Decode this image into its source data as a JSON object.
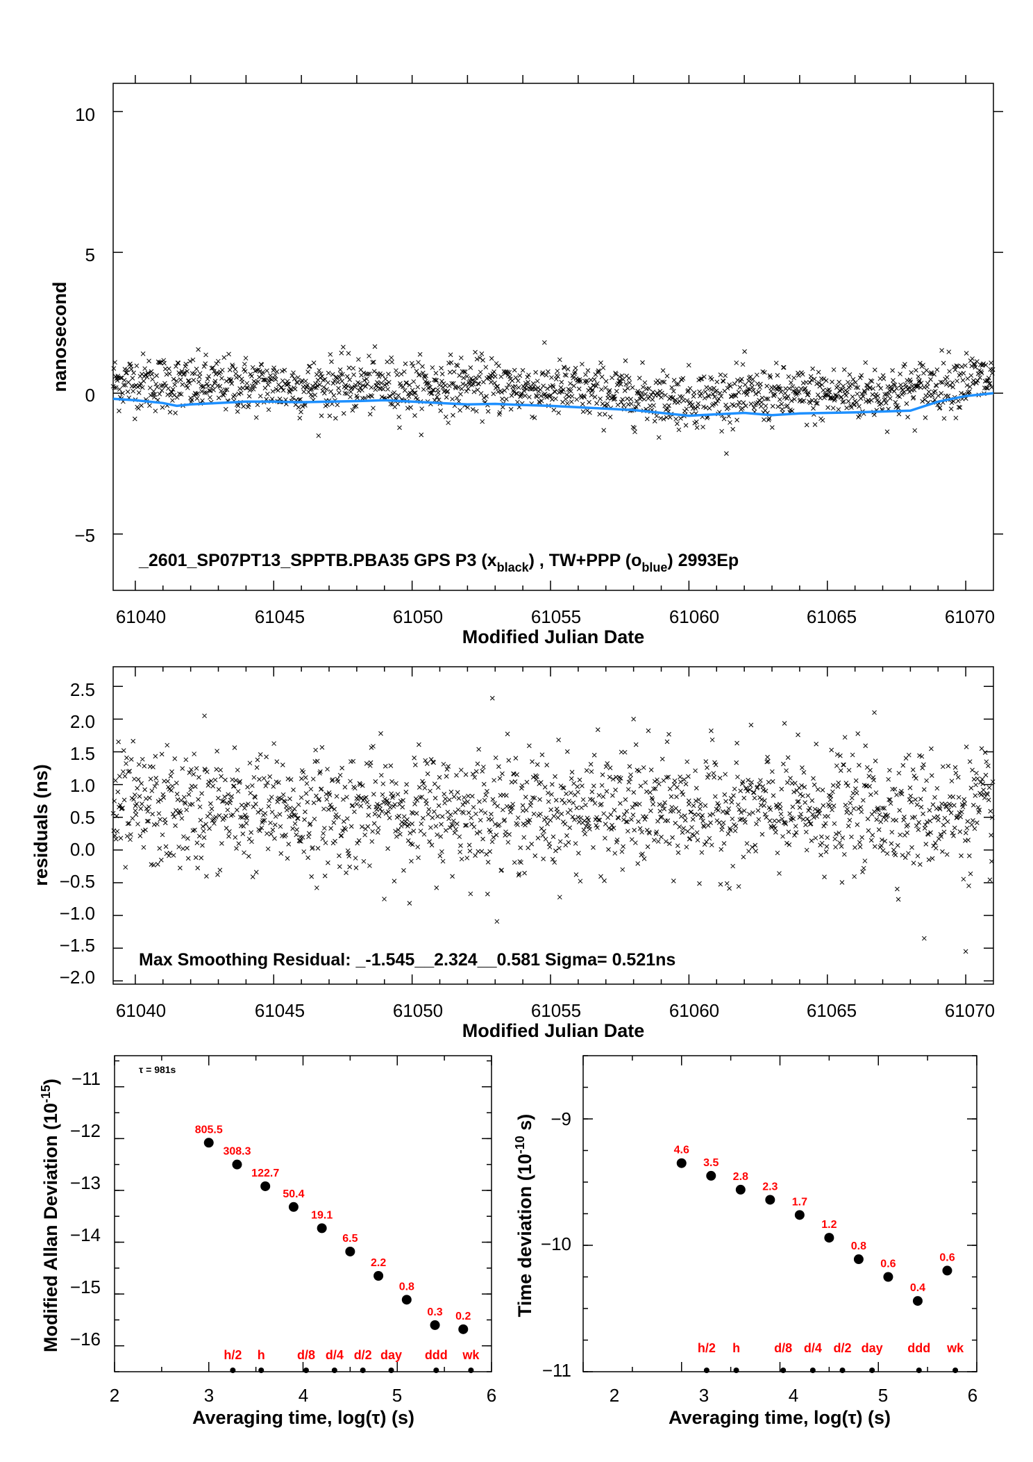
{
  "panels": {
    "top": {
      "ylabel": "nanosecond",
      "xlabel": "Modified Julian Date",
      "yticks": [
        "10",
        "5",
        "0",
        "−5"
      ],
      "xticks": [
        "61040",
        "61045",
        "61050",
        "61055",
        "61060",
        "61065",
        "61070"
      ],
      "caption_main": "_2601_SP07PT13_SPPTB.PBA35     GPS P3 (x",
      "caption_sub1": "black",
      "caption_mid": ") ,  TW+PPP (o",
      "caption_sub2": "blue",
      "caption_end": ")  2993Ep"
    },
    "middle": {
      "ylabel": "residuals (ns)",
      "xlabel": "Modified Julian Date",
      "yticks": [
        "2.5",
        "2.0",
        "1.5",
        "1.0",
        "0.5",
        "0.0",
        "−0.5",
        "−1.0",
        "−1.5",
        "−2.0"
      ],
      "xticks": [
        "61040",
        "61045",
        "61050",
        "61055",
        "61060",
        "61065",
        "61070"
      ],
      "caption": "Max Smoothing Residual: _-1.545__2.324__0.581  Sigma= 0.521ns"
    },
    "bottom_left": {
      "ylabel": "Modified Allan Deviation (10",
      "ylabel_sup": "-15",
      "ylabel_end": ")",
      "xlabel": "Averaging time, log(τ) (s)",
      "yticks": [
        "−11",
        "−12",
        "−13",
        "−14",
        "−15",
        "−16"
      ],
      "xticks": [
        "2",
        "3",
        "4",
        "5",
        "6"
      ],
      "tau_note": "τ = 981s"
    },
    "bottom_right": {
      "ylabel": "Time deviation (10",
      "ylabel_sup": "-10",
      "ylabel_end": " s)",
      "xlabel": "Averaging time, log(τ) (s)",
      "yticks": [
        "−9",
        "−10",
        "−11"
      ],
      "xticks": [
        "2",
        "3",
        "4",
        "5",
        "6"
      ]
    }
  },
  "colors": {
    "scatter": "#000000",
    "smooth_line": "#1e90ff",
    "labels": "#ff0000",
    "points": "#000000"
  },
  "chart_data": [
    {
      "type": "scatter",
      "ylabel": "nanosecond",
      "xlabel": "Modified Julian Date",
      "xlim": [
        61039.2,
        61071.0
      ],
      "ylim": [
        -7,
        11
      ],
      "grid": false,
      "series": [
        {
          "name": "GPS P3 (x black)",
          "marker": "x",
          "note": "≈2993 epochs scattered ±1 ns around the trend; representative values",
          "x": [
            61040,
            61042,
            61044,
            61046,
            61048,
            61050,
            61052,
            61054,
            61056,
            61058,
            61060,
            61062,
            61064,
            61066,
            61068,
            61070
          ],
          "y": [
            0.4,
            0.3,
            0.3,
            0.2,
            0.3,
            0.2,
            0.3,
            0.2,
            0.1,
            -0.1,
            -0.2,
            -0.1,
            -0.1,
            0.0,
            0.1,
            0.5
          ]
        },
        {
          "name": "TW+PPP (o blue)",
          "marker": "line",
          "x": [
            61039.2,
            61040,
            61041,
            61041.5,
            61042,
            61043,
            61044,
            61045,
            61046,
            61047,
            61048,
            61049,
            61050,
            61051,
            61052,
            61053,
            61054,
            61055,
            61056,
            61057,
            61058,
            61059,
            61060,
            61061,
            61062,
            61063,
            61064,
            61065,
            61066,
            61067,
            61068,
            61069,
            61070,
            61071
          ],
          "y": [
            -0.2,
            -0.25,
            -0.35,
            -0.45,
            -0.4,
            -0.35,
            -0.3,
            -0.3,
            -0.32,
            -0.3,
            -0.28,
            -0.25,
            -0.3,
            -0.35,
            -0.4,
            -0.38,
            -0.42,
            -0.45,
            -0.5,
            -0.55,
            -0.6,
            -0.7,
            -0.8,
            -0.75,
            -0.7,
            -0.78,
            -0.72,
            -0.7,
            -0.68,
            -0.65,
            -0.62,
            -0.3,
            -0.1,
            0.0
          ]
        }
      ]
    },
    {
      "type": "scatter",
      "ylabel": "residuals (ns)",
      "xlabel": "Modified Julian Date",
      "xlim": [
        61039.2,
        61071.0
      ],
      "ylim": [
        -2.05,
        2.8
      ],
      "grid": false,
      "series": [
        {
          "name": "residuals",
          "marker": "x",
          "note": "≈2993 epochs; mean ≈0.6 ns, sigma 0.521 ns; representative values",
          "x": [
            61040,
            61042.5,
            61044,
            61046,
            61048,
            61050,
            61052.9,
            61054,
            61056,
            61058,
            61060,
            61062,
            61064,
            61066.7,
            61068.5,
            61070
          ],
          "y": [
            0.6,
            2.05,
            0.5,
            0.8,
            0.7,
            0.4,
            2.32,
            0.6,
            0.5,
            2.0,
            0.7,
            0.6,
            0.5,
            2.1,
            -1.35,
            -1.55
          ]
        }
      ]
    },
    {
      "type": "scatter",
      "title": "",
      "ylabel": "Modified Allan Deviation (10-15)",
      "xlabel": "Averaging time, log(τ) (s)",
      "xlim": [
        2,
        6
      ],
      "ylim": [
        -16.5,
        -10.4
      ],
      "series": [
        {
          "name": "mod ADEV",
          "x": [
            3.0,
            3.3,
            3.6,
            3.9,
            4.2,
            4.5,
            4.8,
            5.1,
            5.4,
            5.7
          ],
          "y": [
            -12.08,
            -12.5,
            -12.92,
            -13.32,
            -13.73,
            -14.18,
            -14.65,
            -15.11,
            -15.6,
            -15.68
          ],
          "labels": [
            "805.5",
            "308.3",
            "122.7",
            "50.4",
            "19.1",
            "6.5",
            "2.2",
            "0.8",
            "0.3",
            "0.2"
          ]
        }
      ],
      "markers": {
        "labels": [
          "h/2",
          "h",
          "d/8",
          "d/4",
          "d/2",
          "day",
          "ddd",
          "wk"
        ],
        "x": [
          3.255,
          3.556,
          4.033,
          4.334,
          4.635,
          4.936,
          5.413,
          5.782
        ]
      }
    },
    {
      "type": "scatter",
      "ylabel": "Time deviation (10-10 s)",
      "xlabel": "Averaging time, log(τ) (s)",
      "xlim": [
        2,
        6
      ],
      "ylim": [
        -11,
        -8.5
      ],
      "series": [
        {
          "name": "TDEV",
          "x": [
            3.0,
            3.3,
            3.6,
            3.9,
            4.2,
            4.5,
            4.8,
            5.1,
            5.4,
            5.7
          ],
          "y": [
            -9.35,
            -9.45,
            -9.56,
            -9.64,
            -9.76,
            -9.94,
            -10.11,
            -10.25,
            -10.44,
            -10.2
          ],
          "labels": [
            "4.6",
            "3.5",
            "2.8",
            "2.3",
            "1.7",
            "1.2",
            "0.8",
            "0.6",
            "0.4",
            "0.6"
          ]
        }
      ],
      "markers": {
        "labels": [
          "h/2",
          "h",
          "d/8",
          "d/4",
          "d/2",
          "day",
          "ddd",
          "wk"
        ],
        "x": [
          3.255,
          3.556,
          4.033,
          4.334,
          4.635,
          4.936,
          5.413,
          5.782
        ]
      }
    }
  ]
}
